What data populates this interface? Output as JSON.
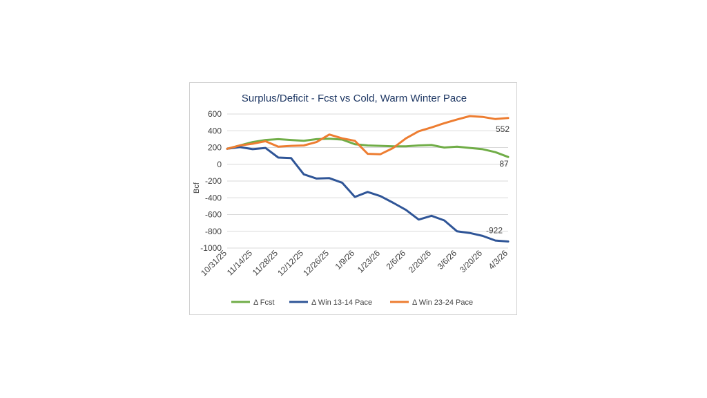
{
  "chart_data": {
    "type": "line",
    "title": "Surplus/Deficit - Fcst vs Cold, Warm Winter Pace",
    "ylabel": "Bcf",
    "xlabel": "",
    "ylim": [
      -1000,
      600
    ],
    "yticks": [
      600,
      400,
      200,
      0,
      -200,
      -400,
      -600,
      -800,
      -1000
    ],
    "grid": true,
    "legend_position": "bottom",
    "x": [
      "10/31/25",
      "11/7/25",
      "11/14/25",
      "11/21/25",
      "11/28/25",
      "12/5/25",
      "12/12/25",
      "12/19/25",
      "12/26/25",
      "1/2/26",
      "1/9/26",
      "1/16/26",
      "1/23/26",
      "1/30/26",
      "2/6/26",
      "2/13/26",
      "2/20/26",
      "2/27/26",
      "3/6/26",
      "3/13/26",
      "3/20/26",
      "3/27/26",
      "4/3/26"
    ],
    "x_tick_labels": [
      "10/31/25",
      "11/14/25",
      "11/28/25",
      "12/12/25",
      "12/26/25",
      "1/9/26",
      "1/23/26",
      "2/6/26",
      "2/20/26",
      "3/6/26",
      "3/20/26",
      "4/3/26"
    ],
    "series": [
      {
        "name": "Δ Fcst",
        "color": "#70ad47",
        "values": [
          185,
          225,
          265,
          290,
          300,
          290,
          280,
          300,
          305,
          295,
          240,
          225,
          220,
          215,
          215,
          225,
          230,
          200,
          210,
          195,
          180,
          145,
          87
        ],
        "end_label": "87"
      },
      {
        "name": "Δ Win 13-14 Pace",
        "color": "#2f5597",
        "values": [
          185,
          205,
          180,
          195,
          80,
          75,
          -120,
          -170,
          -165,
          -220,
          -390,
          -330,
          -380,
          -460,
          -545,
          -660,
          -615,
          -670,
          -800,
          -820,
          -855,
          -910,
          -922
        ],
        "end_label": "-922"
      },
      {
        "name": "Δ Win 23-24 Pace",
        "color": "#ed7d31",
        "values": [
          185,
          225,
          245,
          275,
          210,
          220,
          225,
          265,
          355,
          310,
          280,
          125,
          120,
          195,
          310,
          395,
          440,
          490,
          535,
          575,
          565,
          540,
          552
        ],
        "end_label": "552"
      }
    ]
  }
}
